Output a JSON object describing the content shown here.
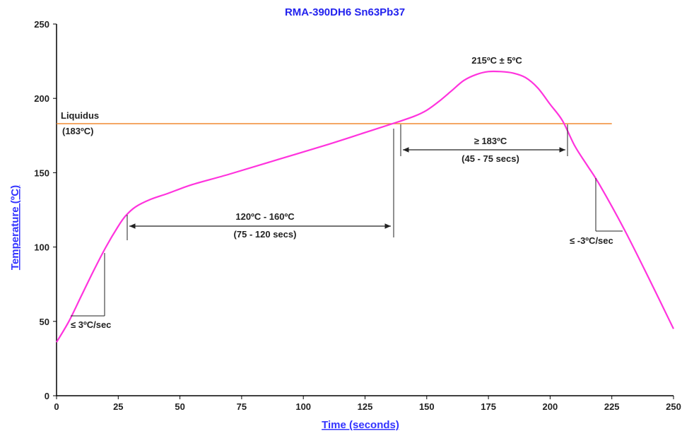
{
  "chart_data": {
    "type": "line",
    "title": "RMA-390DH6 Sn63Pb37",
    "xlabel": "Time (seconds)",
    "ylabel": "Temperature (ºC)",
    "xlim": [
      0,
      250
    ],
    "ylim": [
      0,
      250
    ],
    "x_ticks": [
      0,
      25,
      50,
      75,
      100,
      125,
      150,
      175,
      200,
      225,
      250
    ],
    "y_ticks": [
      0,
      50,
      100,
      150,
      200,
      250
    ],
    "grid": false,
    "series": [
      {
        "color": "#ff33dd",
        "x": [
          0,
          5,
          10,
          15,
          20,
          25,
          28,
          32,
          38,
          45,
          55,
          70,
          90,
          110,
          125,
          138,
          145,
          150,
          155,
          160,
          165,
          170,
          175,
          180,
          185,
          190,
          195,
          200,
          205,
          210,
          215,
          220,
          230,
          240,
          250
        ],
        "y": [
          36,
          50,
          67,
          84,
          100,
          114,
          121,
          127,
          132,
          136,
          142,
          149,
          159,
          169,
          177,
          184,
          188,
          192,
          198,
          205,
          212,
          216,
          218,
          218,
          217,
          214,
          207,
          196,
          185,
          168,
          155,
          142,
          112,
          79,
          45
        ]
      }
    ],
    "reference_line": {
      "y": 183,
      "x_start": 0,
      "x_end": 225,
      "color": "#f08a30",
      "label": "Liquidus",
      "sublabel": "(183ºC)"
    },
    "annotations": {
      "peak_label": "215ºC ± 5ºC",
      "soak_label": "120ºC - 160ºC",
      "soak_time": "(75 - 120 secs)",
      "tal_label": "≥ 183ºC",
      "tal_time": "(45 - 75 secs)",
      "ramp_up": "≤ 3ºC/sec",
      "ramp_down": "≤ -3ºC/sec"
    },
    "colors": {
      "title": "#2222ee",
      "axis_title": "#3333ff",
      "axis": "#000000"
    }
  }
}
